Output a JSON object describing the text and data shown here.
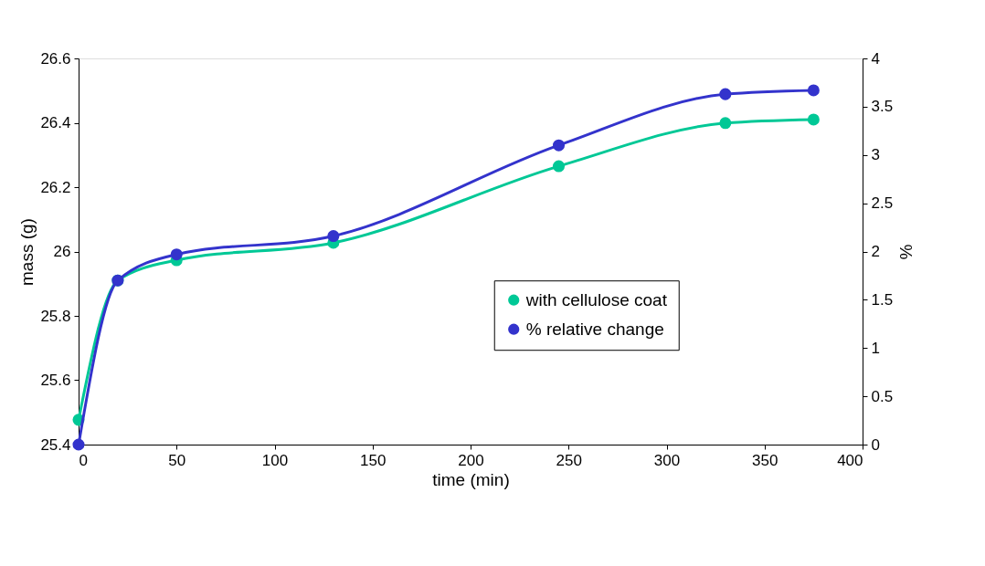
{
  "chart_data": {
    "type": "line",
    "xlabel": "time (min)",
    "ylabel": "mass (g)",
    "y2label": "%",
    "x": [
      0,
      20,
      50,
      130,
      245,
      330,
      375
    ],
    "series": [
      {
        "name": "with cellulose coat",
        "color": "#00c896",
        "values": [
          25.477,
          25.91,
          25.973,
          26.027,
          26.265,
          26.399,
          26.41
        ]
      },
      {
        "name": "% relative change",
        "color": "#3333cc",
        "axis": "y2",
        "values": [
          0,
          1.7,
          1.97,
          2.16,
          3.1,
          3.63,
          3.67
        ]
      }
    ],
    "xlim": [
      0,
      400
    ],
    "xticks": [
      0,
      50,
      100,
      150,
      200,
      250,
      300,
      350,
      400
    ],
    "ylim": [
      25.4,
      26.6
    ],
    "yticks": [
      25.4,
      25.6,
      25.8,
      26,
      26.2,
      26.4,
      26.6
    ],
    "y2lim": [
      0,
      4
    ],
    "y2ticks": [
      0,
      0.5,
      1,
      1.5,
      2,
      2.5,
      3,
      3.5,
      4
    ],
    "grid": false,
    "legend": "right",
    "marker": "circle",
    "line_style": "solid"
  }
}
